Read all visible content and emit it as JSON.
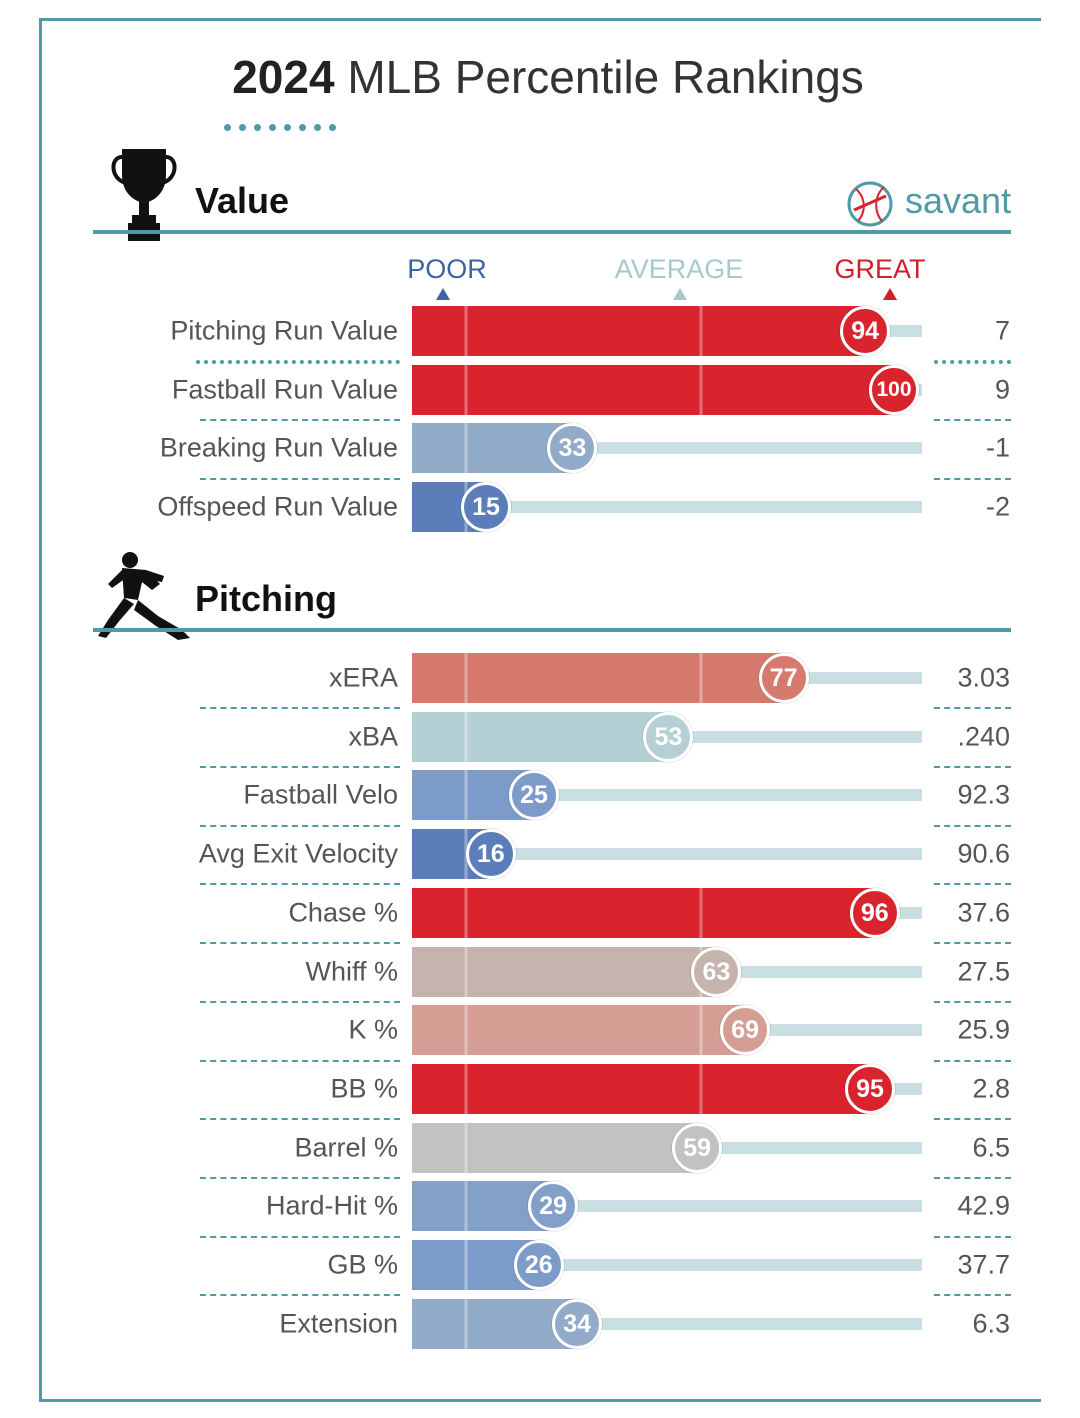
{
  "title_bold": "2024",
  "title_rest": "MLB Percentile Rankings",
  "brand": {
    "name": "savant",
    "color": "#4f9aa6"
  },
  "scale": {
    "poor": {
      "label": "POOR",
      "color": "#3d63a4"
    },
    "average": {
      "label": "AVERAGE",
      "color": "#a9c8ce"
    },
    "great": {
      "label": "GREAT",
      "color": "#cf1f2a"
    }
  },
  "sections": [
    {
      "key": "value",
      "title": "Value",
      "icon": "trophy-icon"
    },
    {
      "key": "pitching",
      "title": "Pitching",
      "icon": "pitcher-icon"
    }
  ],
  "chart_data": {
    "type": "bar",
    "xlim": [
      0,
      100
    ],
    "groups": [
      {
        "section": "Value",
        "rows": [
          {
            "metric": "Pitching Run Value",
            "percentile": 94,
            "value": "7",
            "color": "#d9232d"
          },
          {
            "metric": "Fastball Run Value",
            "percentile": 100,
            "value": "9",
            "color": "#d9232d"
          },
          {
            "metric": "Breaking Run Value",
            "percentile": 33,
            "value": "-1",
            "color": "#92abc9"
          },
          {
            "metric": "Offspeed Run Value",
            "percentile": 15,
            "value": "-2",
            "color": "#5b7dba"
          }
        ]
      },
      {
        "section": "Pitching",
        "rows": [
          {
            "metric": "xERA",
            "percentile": 77,
            "value": "3.03",
            "color": "#d67a6e"
          },
          {
            "metric": "xBA",
            "percentile": 53,
            "value": ".240",
            "color": "#b5d0d4"
          },
          {
            "metric": "Fastball Velo",
            "percentile": 25,
            "value": "92.3",
            "color": "#7c9bc8"
          },
          {
            "metric": "Avg Exit Velocity",
            "percentile": 16,
            "value": "90.6",
            "color": "#5b7dba"
          },
          {
            "metric": "Chase %",
            "percentile": 96,
            "value": "37.6",
            "color": "#d9232d"
          },
          {
            "metric": "Whiff %",
            "percentile": 63,
            "value": "27.5",
            "color": "#c7b3ad"
          },
          {
            "metric": "K %",
            "percentile": 69,
            "value": "25.9",
            "color": "#d49e94"
          },
          {
            "metric": "BB %",
            "percentile": 95,
            "value": "2.8",
            "color": "#d9232d"
          },
          {
            "metric": "Barrel %",
            "percentile": 59,
            "value": "6.5",
            "color": "#c2c2c2"
          },
          {
            "metric": "Hard-Hit %",
            "percentile": 29,
            "value": "42.9",
            "color": "#83a0c8"
          },
          {
            "metric": "GB %",
            "percentile": 26,
            "value": "37.7",
            "color": "#7c9bc8"
          },
          {
            "metric": "Extension",
            "percentile": 34,
            "value": "6.3",
            "color": "#92abc9"
          }
        ]
      }
    ]
  }
}
